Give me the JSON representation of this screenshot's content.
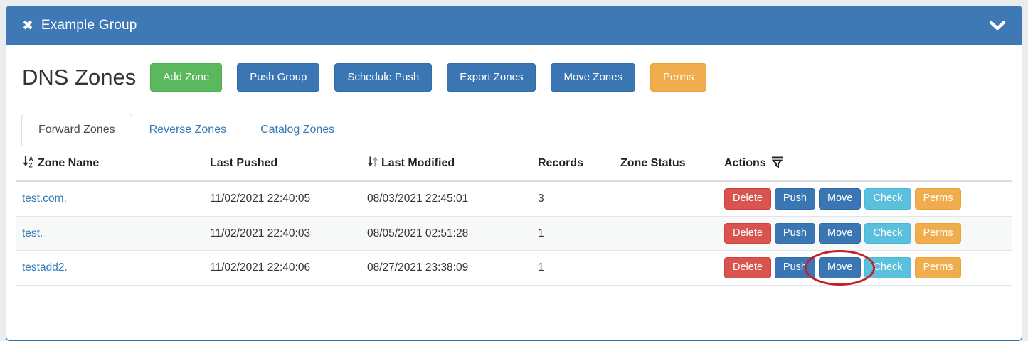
{
  "panel": {
    "title": "Example Group",
    "close_icon": "✖"
  },
  "page": {
    "heading": "DNS Zones"
  },
  "toolbar": {
    "buttons": [
      {
        "label": "Add Zone",
        "style": "success"
      },
      {
        "label": "Push Group",
        "style": "primary"
      },
      {
        "label": "Schedule Push",
        "style": "primary"
      },
      {
        "label": "Export Zones",
        "style": "primary"
      },
      {
        "label": "Move Zones",
        "style": "primary"
      },
      {
        "label": "Perms",
        "style": "warning"
      }
    ]
  },
  "tabs": [
    {
      "label": "Forward Zones",
      "active": true
    },
    {
      "label": "Reverse Zones",
      "active": false
    },
    {
      "label": "Catalog Zones",
      "active": false
    }
  ],
  "table": {
    "columns": [
      {
        "label": "Zone Name",
        "icon": "sort-alpha-down",
        "icon_position": "before",
        "sortable": true
      },
      {
        "label": "Last Pushed",
        "icon": null,
        "icon_position": null,
        "sortable": false
      },
      {
        "label": "Last Modified",
        "icon": "sort",
        "icon_position": "before",
        "sortable": true
      },
      {
        "label": "Records",
        "icon": null,
        "icon_position": null,
        "sortable": false
      },
      {
        "label": "Zone Status",
        "icon": null,
        "icon_position": null,
        "sortable": false
      },
      {
        "label": "Actions",
        "icon": "filter",
        "icon_position": "after",
        "sortable": false
      }
    ],
    "rows": [
      {
        "zone_name": "test.com.",
        "last_pushed": "11/02/2021 22:40:05",
        "last_modified": "08/03/2021 22:45:01",
        "records": "3",
        "zone_status": "",
        "actions": [
          "Delete",
          "Push",
          "Move",
          "Check",
          "Perms"
        ]
      },
      {
        "zone_name": "test.",
        "last_pushed": "11/02/2021 22:40:03",
        "last_modified": "08/05/2021 02:51:28",
        "records": "1",
        "zone_status": "",
        "actions": [
          "Delete",
          "Push",
          "Move",
          "Check",
          "Perms"
        ]
      },
      {
        "zone_name": "testadd2.",
        "last_pushed": "11/02/2021 22:40:06",
        "last_modified": "08/27/2021 23:38:09",
        "records": "1",
        "zone_status": "",
        "actions": [
          "Delete",
          "Push",
          "Move",
          "Check",
          "Perms"
        ]
      }
    ],
    "action_styles": {
      "Delete": "danger",
      "Push": "primary",
      "Move": "primary",
      "Check": "info",
      "Perms": "warning"
    }
  },
  "annotation": {
    "shape": "ellipse",
    "row_index": 2,
    "action_label": "Move",
    "color": "#c22127"
  },
  "colors": {
    "panel_blue": "#3e78b5",
    "primary": "#337ab7",
    "success": "#5cb85c",
    "warning": "#f0ad4e",
    "danger": "#d9534f",
    "info": "#5bc0de",
    "link": "#337ab7",
    "annotation_red": "#c22127"
  }
}
